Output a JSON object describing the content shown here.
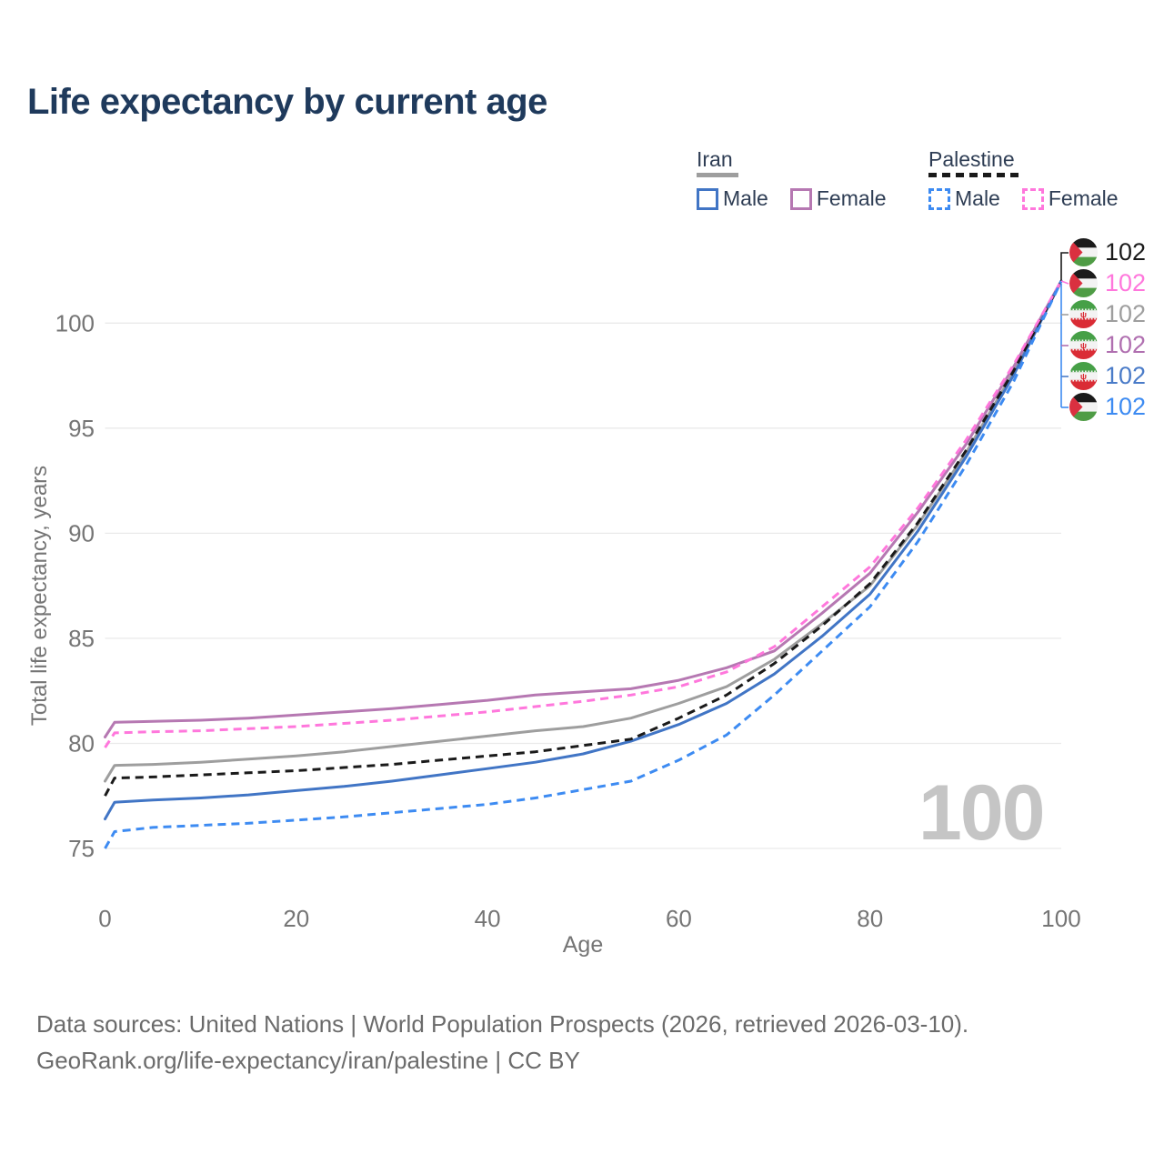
{
  "title": "Life expectancy by current age",
  "legend": {
    "groups": [
      {
        "label": "Iran",
        "line_style": "solid",
        "swatch_color": "#9e9e9e",
        "items": [
          {
            "label": "Male",
            "color": "#4175c5"
          },
          {
            "label": "Female",
            "color": "#b678b2"
          }
        ]
      },
      {
        "label": "Palestine",
        "line_style": "dashed",
        "swatch_color": "#1a1a1a",
        "items": [
          {
            "label": "Male",
            "color": "#3d8bf2"
          },
          {
            "label": "Female",
            "color": "#ff77dc"
          }
        ]
      }
    ]
  },
  "chart_data": {
    "type": "line",
    "title": "Life expectancy by current age",
    "xlabel": "Age",
    "ylabel": "Total life expectancy, years",
    "xlim": [
      0,
      100
    ],
    "ylim": [
      75,
      102.5
    ],
    "xticks": [
      0,
      20,
      40,
      60,
      80,
      100
    ],
    "yticks": [
      75,
      80,
      85,
      90,
      95,
      100
    ],
    "grid": "horizontal-only",
    "legend_position": "top-right",
    "watermark": "100",
    "x": [
      0,
      1,
      5,
      10,
      15,
      20,
      25,
      30,
      35,
      40,
      45,
      50,
      55,
      60,
      65,
      70,
      75,
      80,
      85,
      90,
      95,
      100
    ],
    "series": [
      {
        "id": "iran",
        "name": "Iran (both sexes)",
        "color": "#9e9e9e",
        "dash": false,
        "end_value": 102,
        "values": [
          78.2,
          78.95,
          79.0,
          79.1,
          79.25,
          79.4,
          79.6,
          79.85,
          80.1,
          80.35,
          80.6,
          80.8,
          81.2,
          81.9,
          82.7,
          84.0,
          85.7,
          87.5,
          90.4,
          93.8,
          97.65,
          102
        ]
      },
      {
        "id": "iran-female",
        "name": "Iran Female",
        "color": "#b678b2",
        "dash": false,
        "end_value": 102,
        "values": [
          80.3,
          81.0,
          81.05,
          81.1,
          81.2,
          81.35,
          81.5,
          81.65,
          81.85,
          82.05,
          82.3,
          82.45,
          82.6,
          83.0,
          83.6,
          84.4,
          86.2,
          88.1,
          91.0,
          94.2,
          97.9,
          102
        ]
      },
      {
        "id": "iran-male",
        "name": "Iran Male",
        "color": "#4175c5",
        "dash": false,
        "end_value": 102,
        "values": [
          76.4,
          77.2,
          77.3,
          77.4,
          77.55,
          77.75,
          77.95,
          78.2,
          78.5,
          78.8,
          79.1,
          79.5,
          80.1,
          80.9,
          81.9,
          83.3,
          85.1,
          87.1,
          90.1,
          93.6,
          97.5,
          102
        ]
      },
      {
        "id": "palestine",
        "name": "Palestine (both sexes)",
        "color": "#1a1a1a",
        "dash": true,
        "end_value": 102,
        "values": [
          77.5,
          78.35,
          78.4,
          78.5,
          78.6,
          78.7,
          78.85,
          79.0,
          79.2,
          79.4,
          79.6,
          79.9,
          80.2,
          81.2,
          82.3,
          83.8,
          85.6,
          87.6,
          90.5,
          93.9,
          97.7,
          102
        ]
      },
      {
        "id": "palestine-female",
        "name": "Palestine Female",
        "color": "#ff77dc",
        "dash": true,
        "end_value": 102,
        "values": [
          79.8,
          80.5,
          80.55,
          80.6,
          80.7,
          80.8,
          80.95,
          81.1,
          81.3,
          81.5,
          81.75,
          82.0,
          82.3,
          82.7,
          83.4,
          84.6,
          86.5,
          88.4,
          91.2,
          94.4,
          98.0,
          102
        ]
      },
      {
        "id": "palestine-male",
        "name": "Palestine Male",
        "color": "#3d8bf2",
        "dash": true,
        "end_value": 102,
        "values": [
          75.0,
          75.8,
          76.0,
          76.1,
          76.2,
          76.35,
          76.5,
          76.7,
          76.9,
          77.1,
          77.4,
          77.8,
          78.2,
          79.2,
          80.4,
          82.3,
          84.4,
          86.5,
          89.6,
          93.2,
          97.2,
          102
        ]
      }
    ]
  },
  "end_labels": [
    {
      "flag": "palestine",
      "series": "Palestine (both sexes)",
      "value": "102",
      "color": "#1a1a1a"
    },
    {
      "flag": "palestine",
      "series": "Palestine Female",
      "value": "102",
      "color": "#ff77dc"
    },
    {
      "flag": "iran",
      "series": "Iran (both sexes)",
      "value": "102",
      "color": "#9e9e9e"
    },
    {
      "flag": "iran",
      "series": "Iran Female",
      "value": "102",
      "color": "#b06fb0"
    },
    {
      "flag": "iran",
      "series": "Iran Male",
      "value": "102",
      "color": "#4a7bc8"
    },
    {
      "flag": "palestine",
      "series": "Palestine Male",
      "value": "102",
      "color": "#3d8bf2"
    }
  ],
  "footer": {
    "line1": "Data sources: United Nations | World Population Prospects (2026, retrieved 2026-03-10).",
    "line2": "GeoRank.org/life-expectancy/iran/palestine | CC BY"
  }
}
